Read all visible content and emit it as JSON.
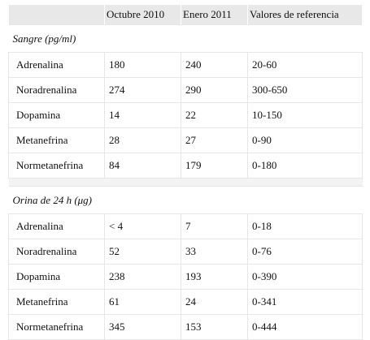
{
  "header": {
    "col1": "",
    "col2": "Octubre 2010",
    "col3": "Enero 2011",
    "col4": "Valores de referencia"
  },
  "sections": [
    {
      "title": "Sangre (pg/ml)",
      "rows": [
        {
          "label": "Adrenalina",
          "oct2010": "180",
          "jan2011": "240",
          "ref": "20-60"
        },
        {
          "label": "Noradrenalina",
          "oct2010": "274",
          "jan2011": "290",
          "ref": "300-650"
        },
        {
          "label": "Dopamina",
          "oct2010": "14",
          "jan2011": "22",
          "ref": "10-150"
        },
        {
          "label": "Metanefrina",
          "oct2010": "28",
          "jan2011": "27",
          "ref": "0-90"
        },
        {
          "label": "Normetanefrina",
          "oct2010": "84",
          "jan2011": "179",
          "ref": "0-180"
        }
      ]
    },
    {
      "title": "Orina de 24 h (μg)",
      "rows": [
        {
          "label": "Adrenalina",
          "oct2010": "< 4",
          "jan2011": "7",
          "ref": "0-18"
        },
        {
          "label": "Noradrenalina",
          "oct2010": "52",
          "jan2011": "33",
          "ref": "0-76"
        },
        {
          "label": "Dopamina",
          "oct2010": "238",
          "jan2011": "193",
          "ref": "0-390"
        },
        {
          "label": "Metanefrina",
          "oct2010": "61",
          "jan2011": "24",
          "ref": "0-341"
        },
        {
          "label": "Normetanefrina",
          "oct2010": "345",
          "jan2011": "153",
          "ref": "0-444"
        }
      ]
    }
  ]
}
